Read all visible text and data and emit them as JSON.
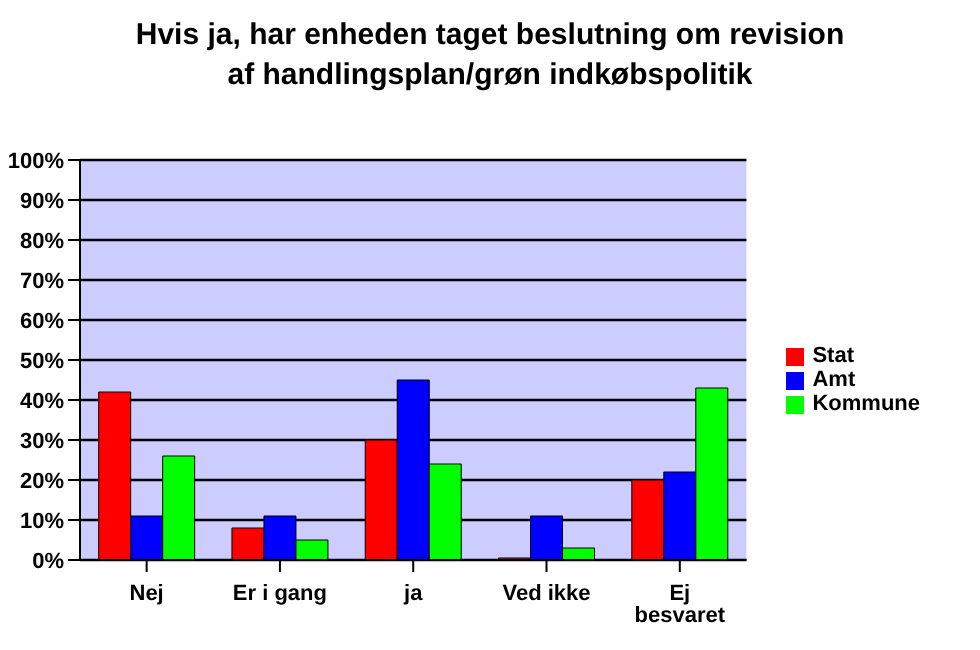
{
  "chart_data": {
    "type": "bar",
    "title": "Hvis ja, har enheden taget beslutning om revision af handlingsplan/grøn indkøbspolitik",
    "categories": [
      "Nej",
      "Er i gang",
      "ja",
      "Ved ikke",
      "Ej besvaret"
    ],
    "series": [
      {
        "name": "Stat",
        "color": "#ff0000",
        "values": [
          42,
          8,
          30,
          0.5,
          20
        ]
      },
      {
        "name": "Amt",
        "color": "#0000ff",
        "values": [
          11,
          11,
          45,
          11,
          22
        ]
      },
      {
        "name": "Kommune",
        "color": "#00ff00",
        "values": [
          26,
          5,
          24,
          3,
          43
        ]
      }
    ],
    "ylim": [
      0,
      100
    ],
    "yticks": [
      {
        "value": 0,
        "label": "0%"
      },
      {
        "value": 10,
        "label": "10%"
      },
      {
        "value": 20,
        "label": "20%"
      },
      {
        "value": 30,
        "label": "30%"
      },
      {
        "value": 40,
        "label": "40%"
      },
      {
        "value": 50,
        "label": "50%"
      },
      {
        "value": 60,
        "label": "60%"
      },
      {
        "value": 70,
        "label": "70%"
      },
      {
        "value": 80,
        "label": "80%"
      },
      {
        "value": 90,
        "label": "90%"
      },
      {
        "value": 100,
        "label": "100%"
      }
    ],
    "grid": "y",
    "legend": "right"
  }
}
